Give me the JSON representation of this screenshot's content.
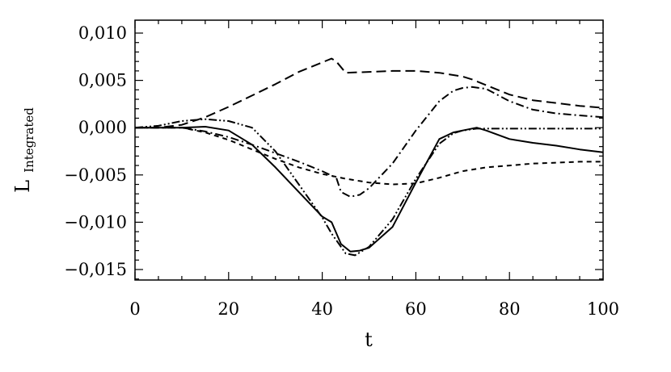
{
  "chart_data": {
    "type": "line",
    "title": "",
    "xlabel": "t",
    "ylabel": "L",
    "ylabel_subscript": "Integrated",
    "xlim": [
      0,
      100
    ],
    "ylim": [
      -0.016,
      0.011
    ],
    "grid": false,
    "legend": "none",
    "x_ticks": [
      0,
      20,
      40,
      60,
      80,
      100
    ],
    "x_tick_labels": [
      "0",
      "20",
      "40",
      "60",
      "80",
      "100"
    ],
    "y_ticks": [
      0.01,
      0.005,
      0.0,
      -0.005,
      -0.01,
      -0.015
    ],
    "y_tick_labels": [
      "0,010",
      "0,005",
      "0,000",
      "−0,005",
      "−0,010",
      "−0,015"
    ],
    "series": [
      {
        "style": "solid",
        "x": [
          0,
          5,
          10,
          15,
          20,
          25,
          30,
          35,
          40,
          42,
          44,
          46,
          48,
          50,
          55,
          60,
          65,
          68,
          70,
          73,
          75,
          80,
          85,
          90,
          95,
          100
        ],
        "y": [
          0,
          0,
          0,
          0.0001,
          -0.0003,
          -0.0018,
          -0.0042,
          -0.0068,
          -0.0094,
          -0.01,
          -0.0123,
          -0.0131,
          -0.013,
          -0.0127,
          -0.0105,
          -0.0058,
          -0.0012,
          -0.0005,
          -0.0003,
          0.0,
          -0.0003,
          -0.0012,
          -0.0016,
          -0.0019,
          -0.0023,
          -0.0026
        ]
      },
      {
        "style": "long-dash",
        "x": [
          0,
          5,
          10,
          15,
          20,
          25,
          30,
          35,
          40,
          42,
          43,
          45,
          50,
          55,
          60,
          65,
          70,
          72,
          75,
          80,
          85,
          90,
          95,
          100
        ],
        "y": [
          0,
          0,
          0.0003,
          0.0011,
          0.0022,
          0.0034,
          0.0046,
          0.0059,
          0.0069,
          0.0073,
          0.007,
          0.0058,
          0.0059,
          0.006,
          0.006,
          0.0058,
          0.0054,
          0.0051,
          0.0045,
          0.0035,
          0.0029,
          0.0026,
          0.0023,
          0.0021
        ]
      },
      {
        "style": "short-dash",
        "x": [
          0,
          5,
          10,
          15,
          20,
          25,
          30,
          35,
          40,
          45,
          50,
          55,
          60,
          65,
          70,
          75,
          80,
          85,
          90,
          95,
          100
        ],
        "y": [
          0,
          0,
          0,
          -0.0005,
          -0.0013,
          -0.0023,
          -0.0033,
          -0.0042,
          -0.0049,
          -0.0054,
          -0.0058,
          -0.006,
          -0.0059,
          -0.0053,
          -0.0046,
          -0.0042,
          -0.004,
          -0.0038,
          -0.0037,
          -0.0036,
          -0.0036
        ]
      },
      {
        "style": "dash-dot",
        "x": [
          0,
          5,
          10,
          15,
          20,
          25,
          30,
          35,
          40,
          43,
          44,
          46,
          48,
          50,
          55,
          60,
          65,
          68,
          70,
          72,
          75,
          80,
          85,
          90,
          95,
          100
        ],
        "y": [
          0,
          0,
          0,
          -0.0004,
          -0.001,
          -0.0018,
          -0.0027,
          -0.0036,
          -0.0046,
          -0.0053,
          -0.0068,
          -0.0073,
          -0.0071,
          -0.0064,
          -0.0038,
          -0.0003,
          0.0028,
          0.0039,
          0.0042,
          0.0043,
          0.0041,
          0.0028,
          0.0019,
          0.0015,
          0.0013,
          0.0011
        ]
      },
      {
        "style": "dash-dot-dot",
        "x": [
          0,
          5,
          10,
          15,
          20,
          25,
          30,
          35,
          40,
          42,
          45,
          47,
          50,
          55,
          60,
          65,
          68,
          70,
          73,
          75,
          80,
          85,
          90,
          95,
          100
        ],
        "y": [
          0,
          0.0002,
          0.0007,
          0.0009,
          0.0007,
          0.0,
          -0.0025,
          -0.006,
          -0.0095,
          -0.0112,
          -0.0133,
          -0.0135,
          -0.0126,
          -0.0097,
          -0.0054,
          -0.0017,
          -0.0006,
          -0.0003,
          -0.0001,
          -0.0001,
          -0.0001,
          -0.0001,
          -0.0001,
          -0.0001,
          -0.0001
        ]
      }
    ]
  }
}
